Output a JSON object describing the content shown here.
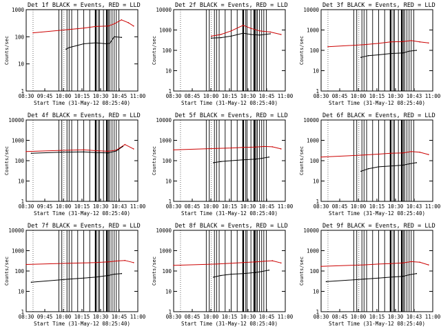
{
  "figure": {
    "panel_count": 9,
    "layout": "3x3 grid"
  },
  "chart_data": [
    {
      "type": "line",
      "title": "Det 1f BLACK = Events, RED = LLD",
      "xlabel": "Start Time (31-May-12 08:25:40)",
      "ylabel": "Counts/sec",
      "ylim": [
        1,
        1000
      ],
      "yscale": "log",
      "y_ticks": [
        "1",
        "10",
        "100",
        "1000"
      ],
      "x_ticks": [
        "08:30",
        "09:45",
        "10:00",
        "10:15",
        "10:30",
        "10:45",
        "11:00"
      ],
      "series": [
        {
          "name": "LLD",
          "color": "#cc0000",
          "x": [
            8.66,
            9.5,
            9.84,
            10.12,
            10.41,
            10.55,
            10.72,
            10.88,
            11.0
          ],
          "values": [
            140,
            185,
            210,
            240,
            250,
            300,
            420,
            330,
            250
          ]
        },
        {
          "name": "Events",
          "color": "#000000",
          "x": [
            9.43,
            9.5,
            9.84,
            10.12,
            10.38,
            10.45,
            10.55,
            10.72
          ],
          "values": [
            35,
            40,
            55,
            60,
            55,
            58,
            100,
            95
          ]
        }
      ]
    },
    {
      "type": "line",
      "title": "Det 2f BLACK = Events, RED = LLD",
      "xlabel": "Start Time (31-May-12 08:25:40)",
      "ylabel": "Counts/sec",
      "ylim": [
        1,
        10000
      ],
      "yscale": "log",
      "y_ticks": [
        "1",
        "10",
        "100",
        "1000",
        "10000"
      ],
      "x_ticks": [
        "08:30",
        "08:45",
        "10:00",
        "10:15",
        "10:30",
        "10:45",
        "11:00"
      ],
      "series": [
        {
          "name": "LLD",
          "color": "#cc0000",
          "x": [
            9.38,
            9.6,
            9.84,
            10.12,
            10.3,
            10.5,
            10.75,
            11.0
          ],
          "values": [
            500,
            600,
            900,
            1700,
            1200,
            900,
            800,
            600
          ]
        },
        {
          "name": "Events",
          "color": "#000000",
          "x": [
            9.38,
            9.6,
            9.84,
            10.12,
            10.3,
            10.5,
            10.75
          ],
          "values": [
            400,
            420,
            500,
            700,
            600,
            560,
            650
          ]
        }
      ]
    },
    {
      "type": "line",
      "title": "Det 3f BLACK = Events, RED = LLD",
      "xlabel": "Start Time (31-May-12 08:25:40)",
      "ylabel": "Counts/sec",
      "ylim": [
        1,
        10000
      ],
      "yscale": "log",
      "y_ticks": [
        "1",
        "10",
        "100",
        "1000",
        "10000"
      ],
      "x_ticks": [
        "08:30",
        "08:45",
        "10:00",
        "10:15",
        "10:30",
        "10:43",
        "11:00"
      ],
      "series": [
        {
          "name": "LLD",
          "color": "#cc0000",
          "x": [
            8.66,
            9.5,
            9.84,
            10.12,
            10.41,
            10.6,
            10.8,
            11.0
          ],
          "values": [
            150,
            190,
            220,
            260,
            270,
            300,
            260,
            230
          ]
        },
        {
          "name": "Events",
          "color": "#000000",
          "x": [
            9.43,
            9.6,
            9.84,
            10.12,
            10.41,
            10.55,
            10.72
          ],
          "values": [
            45,
            55,
            60,
            70,
            75,
            90,
            100
          ]
        }
      ]
    },
    {
      "type": "line",
      "title": "Det 4f BLACK = Events, RED = LLD",
      "xlabel": "Start Time (31-May-12 08:25:40)",
      "ylabel": "Counts/sec",
      "ylim": [
        1,
        10000
      ],
      "yscale": "log",
      "y_ticks": [
        "1",
        "10",
        "100",
        "1000",
        "10000"
      ],
      "x_ticks": [
        "08:30",
        "09:45",
        "10:00",
        "10:15",
        "10:30",
        "10:43",
        "11:00"
      ],
      "series": [
        {
          "name": "LLD",
          "color": "#cc0000",
          "x": [
            8.5,
            9.3,
            9.84,
            10.12,
            10.41,
            10.6,
            10.8,
            11.0
          ],
          "values": [
            280,
            320,
            340,
            310,
            290,
            330,
            620,
            380
          ]
        },
        {
          "name": "Events",
          "color": "#000000",
          "x": [
            8.62,
            9.3,
            9.84,
            10.12,
            10.41,
            10.6,
            10.75
          ],
          "values": [
            230,
            260,
            270,
            250,
            240,
            300,
            500
          ]
        }
      ]
    },
    {
      "type": "line",
      "title": "Det 5f BLACK = Events, RED = LLD",
      "xlabel": "Start Time (31-May-12 08:25:40)",
      "ylabel": "Counts/sec",
      "ylim": [
        1,
        10000
      ],
      "yscale": "log",
      "y_ticks": [
        "1",
        "10",
        "100",
        "1000",
        "10000"
      ],
      "x_ticks": [
        "08:30",
        "08:45",
        "10:00",
        "10:15",
        "10:30",
        "10:45",
        "11:00"
      ],
      "series": [
        {
          "name": "LLD",
          "color": "#cc0000",
          "x": [
            8.5,
            9.5,
            9.84,
            10.12,
            10.41,
            10.6,
            10.8,
            11.0
          ],
          "values": [
            340,
            400,
            420,
            450,
            470,
            500,
            480,
            380
          ]
        },
        {
          "name": "Events",
          "color": "#000000",
          "x": [
            9.43,
            9.6,
            9.84,
            10.12,
            10.41,
            10.55,
            10.72
          ],
          "values": [
            80,
            90,
            100,
            110,
            120,
            130,
            150
          ]
        }
      ]
    },
    {
      "type": "line",
      "title": "Det 6f BLACK = Events, RED = LLD",
      "xlabel": "Start Time (31-May-12 08:25:40)",
      "ylabel": "Counts/sec",
      "ylim": [
        1,
        10000
      ],
      "yscale": "log",
      "y_ticks": [
        "1",
        "10",
        "100",
        "1000",
        "10000"
      ],
      "x_ticks": [
        "08:30",
        "08:45",
        "10:00",
        "10:15",
        "10:30",
        "10:43",
        "11:00"
      ],
      "series": [
        {
          "name": "LLD",
          "color": "#cc0000",
          "x": [
            8.5,
            9.5,
            9.84,
            10.12,
            10.41,
            10.6,
            10.8,
            11.0
          ],
          "values": [
            150,
            190,
            210,
            230,
            240,
            280,
            260,
            200
          ]
        },
        {
          "name": "Events",
          "color": "#000000",
          "x": [
            9.43,
            9.6,
            9.84,
            10.12,
            10.41,
            10.55,
            10.72
          ],
          "values": [
            30,
            40,
            50,
            55,
            60,
            70,
            80
          ]
        }
      ]
    },
    {
      "type": "line",
      "title": "Det 7f BLACK = Events, RED = LLD",
      "xlabel": "Start Time (31-May-12 08:25:40)",
      "ylabel": "Counts/sec",
      "ylim": [
        1,
        10000
      ],
      "yscale": "log",
      "y_ticks": [
        "1",
        "10",
        "100",
        "1000",
        "10000"
      ],
      "x_ticks": [
        "08:30",
        "09:45",
        "10:00",
        "10:15",
        "10:30",
        "10:45",
        "11:00"
      ],
      "series": [
        {
          "name": "LLD",
          "color": "#cc0000",
          "x": [
            8.5,
            9.5,
            9.84,
            10.12,
            10.41,
            10.6,
            10.8,
            11.0
          ],
          "values": [
            210,
            240,
            250,
            260,
            280,
            310,
            330,
            260
          ]
        },
        {
          "name": "Events",
          "color": "#000000",
          "x": [
            8.62,
            9.5,
            9.84,
            10.12,
            10.41,
            10.55,
            10.72
          ],
          "values": [
            28,
            40,
            45,
            50,
            60,
            70,
            75
          ]
        }
      ]
    },
    {
      "type": "line",
      "title": "Det 8f BLACK = Events, RED = LLD",
      "xlabel": "Start Time (31-May-12 08:25:40)",
      "ylabel": "Counts/sec",
      "ylim": [
        1,
        10000
      ],
      "yscale": "log",
      "y_ticks": [
        "1",
        "10",
        "100",
        "1000",
        "10000"
      ],
      "x_ticks": [
        "08:30",
        "08:45",
        "10:00",
        "10:15",
        "10:30",
        "10:45",
        "11:00"
      ],
      "series": [
        {
          "name": "LLD",
          "color": "#cc0000",
          "x": [
            8.5,
            9.5,
            9.84,
            10.12,
            10.41,
            10.6,
            10.8,
            11.0
          ],
          "values": [
            190,
            220,
            240,
            260,
            280,
            300,
            320,
            250
          ]
        },
        {
          "name": "Events",
          "color": "#000000",
          "x": [
            9.43,
            9.6,
            9.84,
            10.12,
            10.41,
            10.55,
            10.72
          ],
          "values": [
            50,
            60,
            70,
            75,
            85,
            95,
            110
          ]
        }
      ]
    },
    {
      "type": "line",
      "title": "Det 9f BLACK = Events, RED = LLD",
      "xlabel": "Start Time (31-May-12 08:25:40)",
      "ylabel": "Counts/sec",
      "ylim": [
        1,
        10000
      ],
      "yscale": "log",
      "y_ticks": [
        "1",
        "10",
        "100",
        "1000",
        "10000"
      ],
      "x_ticks": [
        "08:30",
        "08:45",
        "10:00",
        "10:15",
        "10:30",
        "10:43",
        "11:00"
      ],
      "series": [
        {
          "name": "LLD",
          "color": "#cc0000",
          "x": [
            8.5,
            9.5,
            9.84,
            10.12,
            10.41,
            10.6,
            10.8,
            11.0
          ],
          "values": [
            170,
            200,
            220,
            230,
            250,
            290,
            270,
            200
          ]
        },
        {
          "name": "Events",
          "color": "#000000",
          "x": [
            8.62,
            9.5,
            9.84,
            10.12,
            10.41,
            10.55,
            10.72
          ],
          "values": [
            30,
            40,
            45,
            50,
            55,
            65,
            75
          ]
        }
      ]
    }
  ]
}
